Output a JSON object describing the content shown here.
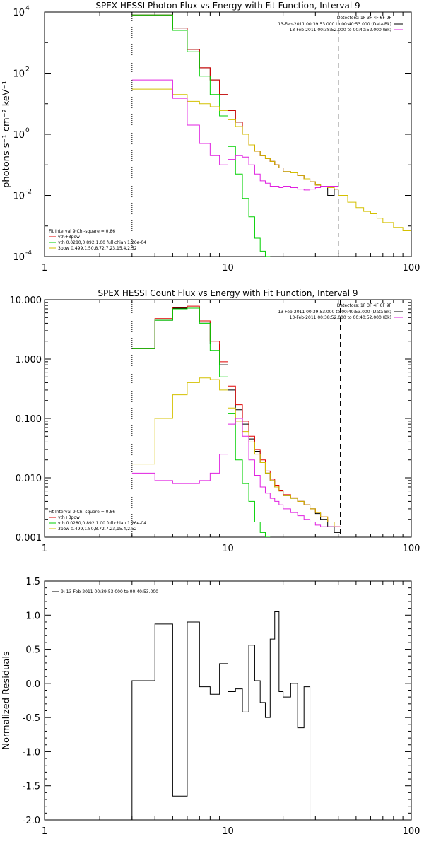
{
  "chart_data": [
    {
      "type": "line",
      "title": "SPEX HESSI Photon Flux vs Energy with Fit Function, Interval 9",
      "xlabel": "",
      "ylabel": "photons s⁻¹ cm⁻² keV⁻¹",
      "xscale": "log",
      "yscale": "log",
      "xlim": [
        1,
        100
      ],
      "ylim": [
        0.0001,
        10000
      ],
      "x_ticks": [
        "1",
        "10",
        "100"
      ],
      "y_ticks": [
        {
          "base": "10",
          "exp": "4"
        },
        {
          "base": "10",
          "exp": "2"
        },
        {
          "base": "10",
          "exp": "0"
        },
        {
          "base": "10",
          "exp": "-2"
        },
        {
          "base": "10",
          "exp": "-4"
        }
      ],
      "vlines": [
        {
          "x": 3,
          "style": "dotted"
        },
        {
          "x": 40,
          "style": "dashed"
        }
      ],
      "legend_top_right": {
        "header": "Detectors: 1F 3F 4F 6F 9F",
        "entries": [
          {
            "text": "13-Feb-2011 00:39:53.000 to 00:40:53.000 (Data-Bk)",
            "color": "#000000"
          },
          {
            "text": "13-Feb-2011 00:38:52.000 to 00:40:52.000 (Bk)",
            "color": "#e020e0"
          }
        ]
      },
      "legend_bottom_left": {
        "header": "Fit Interval 9   Chi-square = 0.86",
        "entries": [
          {
            "text": "vth+3pow",
            "color": "#e00000"
          },
          {
            "text": "vth 0.0280,0.892,1.00  full chian 1.26e-04",
            "color": "#00d000"
          },
          {
            "text": "3pow 0.499,1.50,8.72,7.23,15.4,2.52",
            "color": "#d4c000"
          }
        ]
      },
      "edges": [
        3,
        4,
        5,
        6,
        7,
        8,
        9,
        10,
        11,
        12,
        13,
        14,
        15,
        16,
        17,
        18,
        19,
        20,
        22,
        24,
        26,
        28,
        30,
        32,
        35,
        38,
        40,
        45,
        50,
        55,
        60,
        65,
        70,
        80,
        90,
        100
      ],
      "series": [
        {
          "name": "Data-Bk",
          "color": "#000000",
          "start": 0,
          "values": [
            8000,
            8000,
            3000,
            600,
            150,
            60,
            20,
            6,
            2.5,
            1.0,
            0.45,
            0.28,
            0.2,
            0.16,
            0.13,
            0.1,
            0.08,
            0.06,
            0.055,
            0.045,
            0.035,
            0.028,
            0.022,
            0.02,
            0.01,
            0.016
          ]
        },
        {
          "name": "vth+3pow",
          "color": "#e00000",
          "start": 0,
          "values": [
            8000,
            8000,
            3000,
            600,
            150,
            60,
            20,
            6,
            2.5,
            1.0,
            0.45,
            0.28,
            0.2,
            0.16,
            0.13,
            0.1,
            0.08,
            0.06,
            0.055,
            0.045,
            0.035,
            0.028,
            0.022,
            0.02,
            0.018,
            0.016
          ]
        },
        {
          "name": "vth",
          "color": "#00d000",
          "start": 0,
          "values": [
            8000,
            8000,
            2500,
            500,
            80,
            20,
            4,
            0.4,
            0.05,
            0.008,
            0.002,
            0.0004,
            0.00015,
            0.0001
          ]
        },
        {
          "name": "3pow",
          "color": "#d4c000",
          "start": 0,
          "values": [
            30,
            30,
            20,
            12,
            10,
            8,
            6,
            3,
            1.8,
            1.0,
            0.45,
            0.28,
            0.2,
            0.16,
            0.13,
            0.1,
            0.08,
            0.06,
            0.055,
            0.045,
            0.035,
            0.028,
            0.022,
            0.02,
            0.018,
            0.016,
            0.01,
            0.006,
            0.004,
            0.003,
            0.0025,
            0.0018,
            0.0013,
            0.0009,
            0.0007
          ]
        },
        {
          "name": "Bk",
          "color": "#e020e0",
          "start": 0,
          "values": [
            60,
            60,
            15,
            2,
            0.5,
            0.2,
            0.1,
            0.15,
            0.2,
            0.18,
            0.1,
            0.05,
            0.03,
            0.025,
            0.02,
            0.02,
            0.018,
            0.02,
            0.018,
            0.016,
            0.015,
            0.016,
            0.018,
            0.02,
            0.02,
            0.02
          ]
        }
      ]
    },
    {
      "type": "line",
      "title": "SPEX HESSI Count Flux vs Energy with Fit Function, Interval 9",
      "xlabel": "",
      "ylabel": "",
      "xscale": "log",
      "yscale": "log",
      "xlim": [
        1,
        100
      ],
      "ylim": [
        0.001,
        10
      ],
      "x_ticks": [
        "1",
        "10",
        "100"
      ],
      "y_ticks": [
        "10.000",
        "1.000",
        "0.100",
        "0.010",
        "0.001"
      ],
      "vlines": [
        {
          "x": 3,
          "style": "dotted"
        },
        {
          "x": 41,
          "style": "dashed"
        }
      ],
      "legend_top_right": {
        "header": "Detectors: 1F 3F 4F 6F 9F",
        "entries": [
          {
            "text": "13-Feb-2011 00:39:53.000 to 00:40:53.000 (Data-Bk)",
            "color": "#000000"
          },
          {
            "text": "13-Feb-2011 00:38:52.000 to 00:40:52.000 (Bk)",
            "color": "#e020e0"
          }
        ]
      },
      "legend_bottom_left": {
        "header": "Fit Interval 9   Chi-square = 0.86",
        "entries": [
          {
            "text": "vth+3pow",
            "color": "#e00000"
          },
          {
            "text": "vth 0.0280,0.892,1.00  full chian 1.26e-04",
            "color": "#00d000"
          },
          {
            "text": "3pow 0.499,1.50,8.72,7.23,15.4,2.52",
            "color": "#d4c000"
          }
        ]
      },
      "edges": [
        3,
        4,
        5,
        6,
        7,
        8,
        9,
        10,
        11,
        12,
        13,
        14,
        15,
        16,
        17,
        18,
        19,
        20,
        22,
        24,
        26,
        28,
        30,
        32,
        35,
        38,
        41
      ],
      "series": [
        {
          "name": "Data-Bk",
          "color": "#000000",
          "values": [
            1.5,
            4.5,
            7.2,
            7.5,
            4.2,
            1.8,
            0.8,
            0.3,
            0.14,
            0.08,
            0.045,
            0.028,
            0.018,
            0.012,
            0.009,
            0.007,
            0.006,
            0.005,
            0.0045,
            0.004,
            0.0035,
            0.003,
            0.0025,
            0.002,
            0.0015,
            0.0012
          ]
        },
        {
          "name": "vth+3pow",
          "color": "#e00000",
          "values": [
            1.5,
            4.8,
            7.4,
            7.8,
            4.4,
            2.0,
            0.9,
            0.35,
            0.17,
            0.09,
            0.05,
            0.03,
            0.02,
            0.013,
            0.0095,
            0.0075,
            0.0062,
            0.0052,
            0.0046,
            0.004,
            0.0035,
            0.003,
            0.0026,
            0.0022,
            0.0018,
            0.0015
          ]
        },
        {
          "name": "vth",
          "color": "#00d000",
          "values": [
            1.5,
            4.5,
            7.0,
            7.2,
            4.0,
            1.4,
            0.5,
            0.12,
            0.02,
            0.008,
            0.004,
            0.0018,
            0.0012,
            0.001
          ]
        },
        {
          "name": "3pow",
          "color": "#d4c000",
          "values": [
            0.017,
            0.1,
            0.25,
            0.4,
            0.48,
            0.45,
            0.3,
            0.15,
            0.09,
            0.06,
            0.04,
            0.025,
            0.018,
            0.012,
            0.009,
            0.007,
            0.006,
            0.005,
            0.0045,
            0.004,
            0.0035,
            0.003,
            0.0026,
            0.0022,
            0.0018,
            0.0015
          ]
        },
        {
          "name": "Bk",
          "color": "#e020e0",
          "values": [
            0.012,
            0.009,
            0.008,
            0.008,
            0.009,
            0.012,
            0.025,
            0.08,
            0.1,
            0.05,
            0.02,
            0.011,
            0.007,
            0.0055,
            0.0045,
            0.004,
            0.0035,
            0.003,
            0.0026,
            0.0023,
            0.002,
            0.0018,
            0.0016,
            0.0015,
            0.0015,
            0.0015
          ]
        }
      ]
    },
    {
      "type": "line",
      "title": "",
      "xlabel": "",
      "ylabel": "Normalized Residuals",
      "xscale": "log",
      "yscale": "linear",
      "xlim": [
        1,
        100
      ],
      "ylim": [
        -2.0,
        1.5
      ],
      "x_ticks": [
        "1",
        "10",
        "100"
      ],
      "y_ticks": [
        "1.5",
        "1.0",
        "0.5",
        "0.0",
        "-0.5",
        "-1.0",
        "-1.5",
        "-2.0"
      ],
      "legend": "9: 13-Feb-2011 00:39:53.000 to 00:40:53.000",
      "edges": [
        3,
        4,
        5,
        6,
        7,
        8,
        9,
        10,
        11,
        12,
        13,
        14,
        15,
        16,
        17,
        18,
        19,
        20,
        22,
        24,
        26,
        28,
        30,
        32,
        35,
        38,
        41
      ],
      "series": [
        {
          "name": "9: 13-Feb-2011 00:39:53.000 to 00:40:53.000",
          "color": "#000000",
          "values": [
            0.04,
            0.87,
            -1.65,
            0.9,
            -0.05,
            -0.16,
            0.29,
            -0.12,
            -0.08,
            -0.42,
            0.56,
            0.04,
            -0.28,
            -0.5,
            0.65,
            1.05,
            -0.12,
            -0.2,
            0.0,
            -0.65,
            -0.05
          ]
        }
      ]
    }
  ]
}
